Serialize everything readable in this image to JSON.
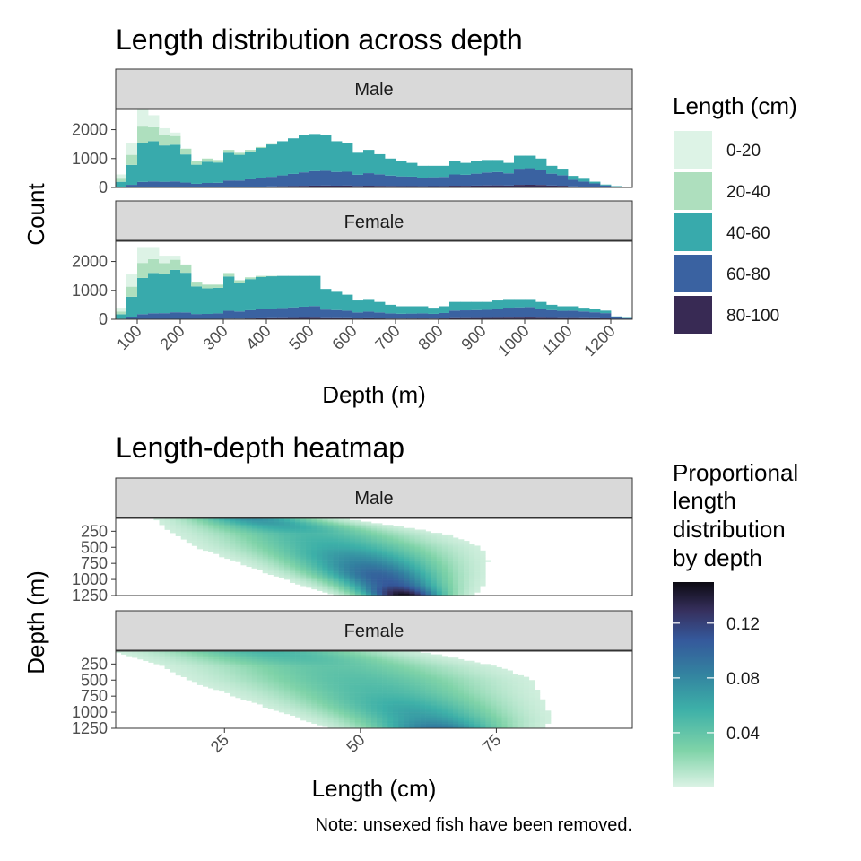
{
  "chart_data": [
    {
      "type": "bar",
      "title": "Length distribution across depth",
      "xlabel": "Depth (m)",
      "ylabel": "Count",
      "xlim": [
        50,
        1250
      ],
      "ylim": [
        0,
        2700
      ],
      "x_ticks": [
        "100",
        "200",
        "300",
        "400",
        "500",
        "600",
        "700",
        "800",
        "900",
        "1000",
        "1100",
        "1200"
      ],
      "y_ticks": [
        "0",
        "1000",
        "2000"
      ],
      "stacked": true,
      "legend": {
        "title": "Length (cm)",
        "position": "right",
        "entries": [
          {
            "label": "0-20",
            "color": "#DDF3E6"
          },
          {
            "label": "20-40",
            "color": "#AEDFBE"
          },
          {
            "label": "40-60",
            "color": "#38AAAC"
          },
          {
            "label": "60-80",
            "color": "#3A62A1"
          },
          {
            "label": "80-100",
            "color": "#382A54"
          }
        ]
      },
      "bin_width": 25,
      "bin_starts": [
        50,
        75,
        100,
        125,
        150,
        175,
        200,
        225,
        250,
        275,
        300,
        325,
        350,
        375,
        400,
        425,
        450,
        475,
        500,
        525,
        550,
        575,
        600,
        625,
        650,
        675,
        700,
        725,
        750,
        775,
        800,
        825,
        850,
        875,
        900,
        925,
        950,
        975,
        1000,
        1025,
        1050,
        1075,
        1100,
        1125,
        1150,
        1175,
        1200,
        1225
      ],
      "panels": [
        {
          "name": "Male",
          "totals": [
            450,
            1550,
            2700,
            2500,
            2050,
            1900,
            1350,
            900,
            1000,
            950,
            1300,
            1200,
            1300,
            1400,
            1500,
            1600,
            1700,
            1800,
            1850,
            1800,
            1600,
            1550,
            1200,
            1300,
            1150,
            1000,
            900,
            850,
            750,
            750,
            750,
            900,
            850,
            900,
            950,
            950,
            850,
            1100,
            1100,
            1000,
            750,
            650,
            400,
            300,
            200,
            100,
            50,
            0
          ]
        },
        {
          "name": "Female",
          "totals": [
            400,
            1550,
            2500,
            2500,
            2200,
            2200,
            1900,
            1300,
            1200,
            1200,
            1600,
            1350,
            1450,
            1500,
            1500,
            1500,
            1500,
            1500,
            1500,
            1050,
            950,
            850,
            650,
            700,
            600,
            500,
            450,
            450,
            450,
            400,
            450,
            600,
            600,
            600,
            600,
            650,
            700,
            700,
            700,
            600,
            500,
            450,
            450,
            400,
            350,
            300,
            100,
            50
          ]
        }
      ]
    },
    {
      "type": "heatmap",
      "title": "Length-depth heatmap",
      "xlabel": "Length (cm)",
      "ylabel": "Depth (m)",
      "xlim": [
        5,
        100
      ],
      "ylim": [
        50,
        1250
      ],
      "x_ticks": [
        "25",
        "50",
        "75"
      ],
      "y_ticks": [
        "250",
        "500",
        "750",
        "1000",
        "1250"
      ],
      "colorbar": {
        "title": [
          "Proportional",
          "length",
          "distribution",
          "by depth"
        ],
        "range": [
          0,
          0.15
        ],
        "ticks": [
          "0.04",
          "0.08",
          "0.12"
        ],
        "tick_values": [
          0.04,
          0.08,
          0.12
        ],
        "position": "right"
      },
      "panels": [
        {
          "name": "Male",
          "ridge": [
            {
              "depth": 100,
              "length": 32,
              "sd": 5,
              "peak": 0.07
            },
            {
              "depth": 300,
              "length": 41,
              "sd": 7,
              "peak": 0.05
            },
            {
              "depth": 500,
              "length": 46,
              "sd": 7,
              "peak": 0.06
            },
            {
              "depth": 700,
              "length": 50,
              "sd": 6,
              "peak": 0.08
            },
            {
              "depth": 900,
              "length": 53,
              "sd": 5,
              "peak": 0.1
            },
            {
              "depth": 1100,
              "length": 56,
              "sd": 4,
              "peak": 0.11
            },
            {
              "depth": 1250,
              "length": 58,
              "sd": 3,
              "peak": 0.15
            }
          ]
        },
        {
          "name": "Female",
          "ridge": [
            {
              "depth": 100,
              "length": 35,
              "sd": 8,
              "peak": 0.05
            },
            {
              "depth": 300,
              "length": 45,
              "sd": 9,
              "peak": 0.04
            },
            {
              "depth": 500,
              "length": 50,
              "sd": 9,
              "peak": 0.045
            },
            {
              "depth": 700,
              "length": 54,
              "sd": 8,
              "peak": 0.05
            },
            {
              "depth": 900,
              "length": 58,
              "sd": 7,
              "peak": 0.06
            },
            {
              "depth": 1100,
              "length": 62,
              "sd": 6,
              "peak": 0.07
            },
            {
              "depth": 1250,
              "length": 64,
              "sd": 5,
              "peak": 0.09
            }
          ]
        }
      ]
    }
  ],
  "note": "Note: unsexed fish have been removed."
}
